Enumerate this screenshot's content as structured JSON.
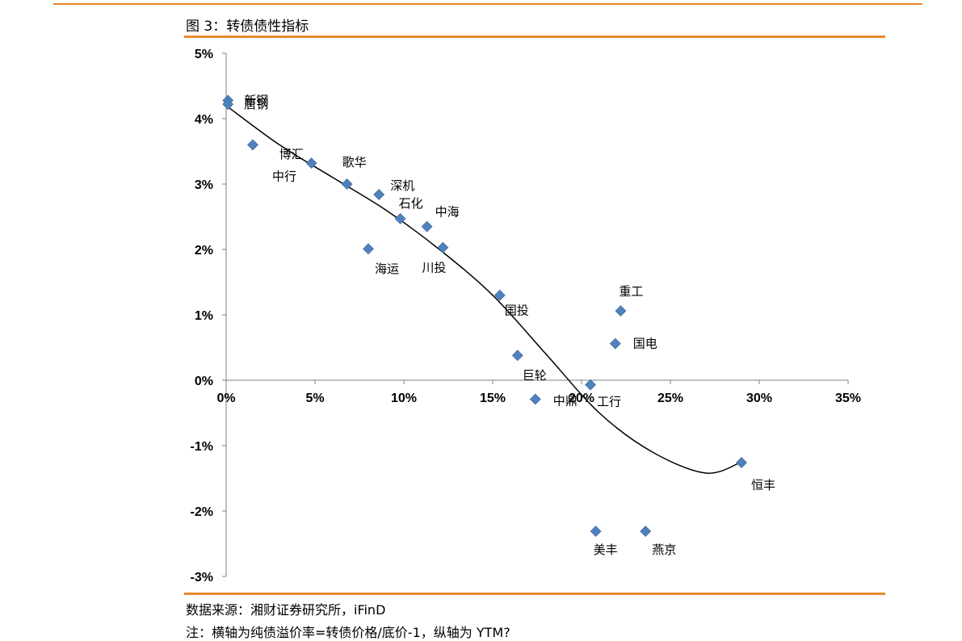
{
  "figure": {
    "title": "图 3：转债债性指标",
    "source": "数据来源：湘财证券研究所，iFinD",
    "note": "注：横轴为纯债溢价率=转债价格/底价-1，纵轴为 YTM?"
  },
  "colors": {
    "accent_rule": "#E8892A",
    "marker": "#4F81BD"
  },
  "chart_data": {
    "type": "scatter",
    "title": "",
    "xlabel": "",
    "ylabel": "",
    "xlim": [
      0,
      35
    ],
    "ylim": [
      -3,
      5
    ],
    "x_ticks": [
      0,
      5,
      10,
      15,
      20,
      25,
      30,
      35
    ],
    "x_tick_labels": [
      "0%",
      "5%",
      "10%",
      "15%",
      "20%",
      "25%",
      "30%",
      "35%"
    ],
    "y_ticks": [
      5,
      4,
      3,
      2,
      1,
      0,
      -1,
      -2,
      -3
    ],
    "y_tick_labels": [
      "5%",
      "4%",
      "3%",
      "2%",
      "1%",
      "0%",
      "-1%",
      "-2%",
      "-3%"
    ],
    "grid": false,
    "legend": "none",
    "points": [
      {
        "name": "新钢",
        "x": 0.1,
        "y": 4.28
      },
      {
        "name": "唐钢",
        "x": 0.1,
        "y": 4.22
      },
      {
        "name": "中行",
        "x": 1.5,
        "y": 3.6
      },
      {
        "name": "博汇",
        "x": 4.8,
        "y": 3.32
      },
      {
        "name": "歌华",
        "x": 6.8,
        "y": 3.0
      },
      {
        "name": "深机",
        "x": 8.6,
        "y": 2.84
      },
      {
        "name": "海运",
        "x": 8.0,
        "y": 2.01
      },
      {
        "name": "石化",
        "x": 9.8,
        "y": 2.47
      },
      {
        "name": "中海",
        "x": 11.3,
        "y": 2.35
      },
      {
        "name": "川投",
        "x": 12.2,
        "y": 2.03
      },
      {
        "name": "国投",
        "x": 15.4,
        "y": 1.3
      },
      {
        "name": "巨轮",
        "x": 16.4,
        "y": 0.38
      },
      {
        "name": "中鼎",
        "x": 17.4,
        "y": -0.29
      },
      {
        "name": "工行",
        "x": 20.5,
        "y": -0.07
      },
      {
        "name": "重工",
        "x": 22.2,
        "y": 1.06
      },
      {
        "name": "国电",
        "x": 21.9,
        "y": 0.56
      },
      {
        "name": "美丰",
        "x": 20.8,
        "y": -2.31
      },
      {
        "name": "燕京",
        "x": 23.6,
        "y": -2.31
      },
      {
        "name": "恒丰",
        "x": 29.0,
        "y": -1.26
      }
    ],
    "trendline": {
      "type": "polynomial",
      "points": [
        [
          0,
          4.2
        ],
        [
          3,
          3.6
        ],
        [
          6,
          3.1
        ],
        [
          9,
          2.6
        ],
        [
          12,
          2.0
        ],
        [
          15,
          1.3
        ],
        [
          18,
          0.4
        ],
        [
          21,
          -0.5
        ],
        [
          24,
          -1.1
        ],
        [
          27,
          -1.42
        ],
        [
          29,
          -1.25
        ]
      ]
    }
  }
}
